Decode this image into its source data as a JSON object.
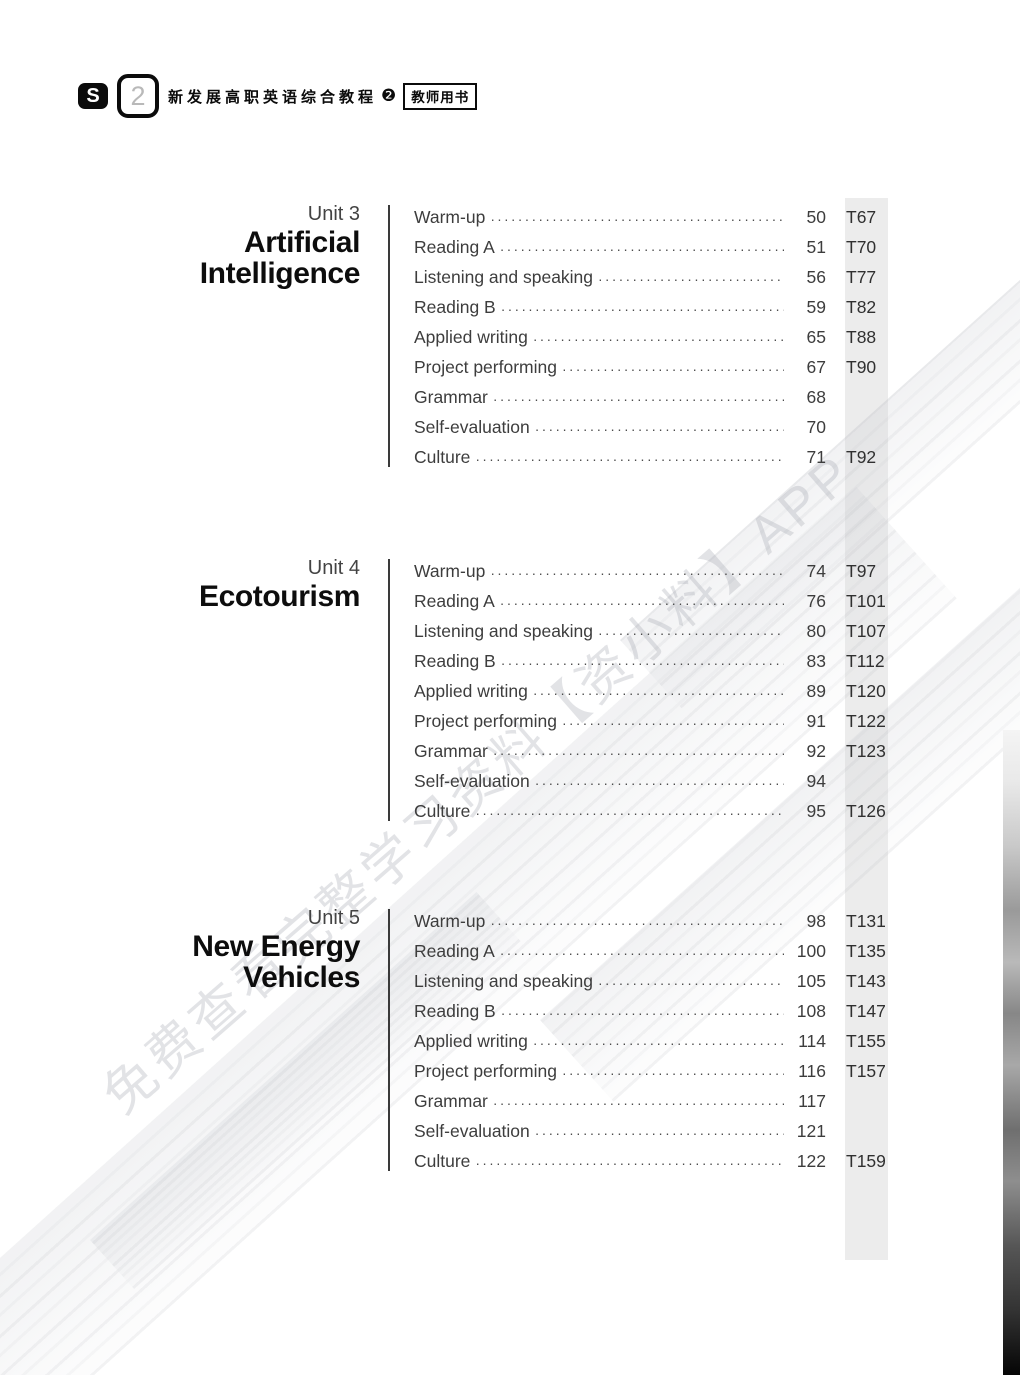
{
  "header": {
    "logo_letter": "S",
    "volume_number": "2",
    "series_title": "新发展高职英语综合教程",
    "series_badge": "❷",
    "edition_label": "教师用书"
  },
  "watermark_text": "免费查看完整学习资料【资小料】APP",
  "units": [
    {
      "unit_label": "Unit 3",
      "title_lines": [
        "Artificial",
        "Intelligence"
      ],
      "entries": [
        {
          "name": "Warm-up",
          "page": "50",
          "tpage": "T67"
        },
        {
          "name": "Reading A",
          "page": "51",
          "tpage": "T70"
        },
        {
          "name": "Listening and speaking",
          "page": "56",
          "tpage": "T77"
        },
        {
          "name": "Reading B",
          "page": "59",
          "tpage": "T82"
        },
        {
          "name": "Applied writing",
          "page": "65",
          "tpage": "T88"
        },
        {
          "name": "Project performing",
          "page": "67",
          "tpage": "T90"
        },
        {
          "name": "Grammar",
          "page": "68",
          "tpage": ""
        },
        {
          "name": "Self-evaluation",
          "page": "70",
          "tpage": ""
        },
        {
          "name": "Culture",
          "page": "71",
          "tpage": "T92"
        }
      ]
    },
    {
      "unit_label": "Unit 4",
      "title_lines": [
        "Ecotourism"
      ],
      "entries": [
        {
          "name": "Warm-up",
          "page": "74",
          "tpage": "T97"
        },
        {
          "name": "Reading A",
          "page": "76",
          "tpage": "T101"
        },
        {
          "name": "Listening and speaking",
          "page": "80",
          "tpage": "T107"
        },
        {
          "name": "Reading B",
          "page": "83",
          "tpage": "T112"
        },
        {
          "name": "Applied writing",
          "page": "89",
          "tpage": "T120"
        },
        {
          "name": "Project performing",
          "page": "91",
          "tpage": "T122"
        },
        {
          "name": "Grammar",
          "page": "92",
          "tpage": "T123"
        },
        {
          "name": "Self-evaluation",
          "page": "94",
          "tpage": ""
        },
        {
          "name": "Culture",
          "page": "95",
          "tpage": "T126"
        }
      ]
    },
    {
      "unit_label": "Unit 5",
      "title_lines": [
        "New Energy",
        "Vehicles"
      ],
      "entries": [
        {
          "name": "Warm-up",
          "page": "98",
          "tpage": "T131"
        },
        {
          "name": "Reading A",
          "page": "100",
          "tpage": "T135"
        },
        {
          "name": "Listening and speaking",
          "page": "105",
          "tpage": "T143"
        },
        {
          "name": "Reading B",
          "page": "108",
          "tpage": "T147"
        },
        {
          "name": "Applied writing",
          "page": "114",
          "tpage": "T155"
        },
        {
          "name": "Project performing",
          "page": "116",
          "tpage": "T157"
        },
        {
          "name": "Grammar",
          "page": "117",
          "tpage": ""
        },
        {
          "name": "Self-evaluation",
          "page": "121",
          "tpage": ""
        },
        {
          "name": "Culture",
          "page": "122",
          "tpage": "T159"
        }
      ]
    }
  ]
}
